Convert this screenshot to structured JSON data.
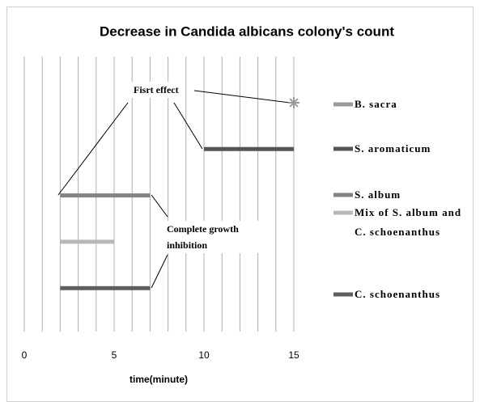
{
  "chart_data": {
    "type": "range",
    "title": "Decrease in Candida albicans colony's count",
    "xlabel": "time(minute)",
    "xlim": [
      0,
      15
    ],
    "xticks": [
      0,
      5,
      10,
      15
    ],
    "xgrid": [
      0,
      1,
      2,
      3,
      4,
      5,
      6,
      7,
      8,
      9,
      10,
      11,
      12,
      13,
      14,
      15
    ],
    "series": [
      {
        "name": "B. sacra",
        "color": "#9a9a9a",
        "values": [
          15,
          15
        ]
      },
      {
        "name": "S. aromaticum",
        "color": "#555555",
        "values": [
          10,
          15
        ]
      },
      {
        "name": "S. album",
        "color": "#838383",
        "values": [
          2,
          7
        ]
      },
      {
        "name": "Mix of S. album and C. schoenanthus",
        "color": "#b8b8b8",
        "values": [
          2,
          5
        ]
      },
      {
        "name": "C. schoenanthus",
        "color": "#5e5e5e",
        "values": [
          2,
          7
        ]
      }
    ],
    "annotations": [
      {
        "text": "Fisrt effect"
      },
      {
        "text": "Complete growth inhibition"
      }
    ]
  }
}
